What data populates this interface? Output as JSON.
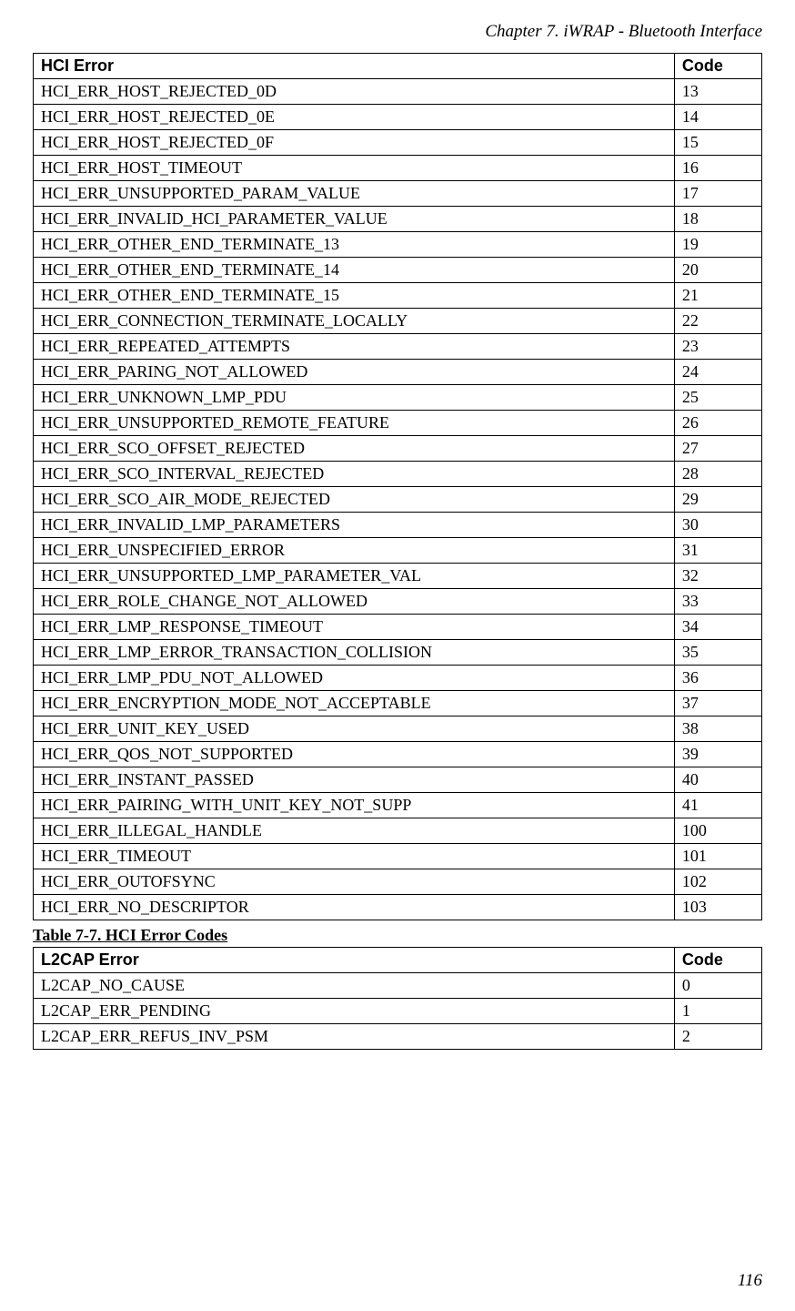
{
  "header": {
    "chapter_title": "Chapter 7. iWRAP - Bluetooth Interface"
  },
  "hci_table": {
    "columns": [
      "HCI Error",
      "Code"
    ],
    "rows": [
      [
        "HCI_ERR_HOST_REJECTED_0D",
        "13"
      ],
      [
        "HCI_ERR_HOST_REJECTED_0E",
        "14"
      ],
      [
        "HCI_ERR_HOST_REJECTED_0F",
        "15"
      ],
      [
        "HCI_ERR_HOST_TIMEOUT",
        "16"
      ],
      [
        "HCI_ERR_UNSUPPORTED_PARAM_VALUE",
        "17"
      ],
      [
        "HCI_ERR_INVALID_HCI_PARAMETER_VALUE",
        "18"
      ],
      [
        "HCI_ERR_OTHER_END_TERMINATE_13",
        "19"
      ],
      [
        "HCI_ERR_OTHER_END_TERMINATE_14",
        "20"
      ],
      [
        "HCI_ERR_OTHER_END_TERMINATE_15",
        "21"
      ],
      [
        "HCI_ERR_CONNECTION_TERMINATE_LOCALLY",
        "22"
      ],
      [
        "HCI_ERR_REPEATED_ATTEMPTS",
        "23"
      ],
      [
        "HCI_ERR_PARING_NOT_ALLOWED",
        "24"
      ],
      [
        "HCI_ERR_UNKNOWN_LMP_PDU",
        "25"
      ],
      [
        "HCI_ERR_UNSUPPORTED_REMOTE_FEATURE",
        "26"
      ],
      [
        "HCI_ERR_SCO_OFFSET_REJECTED",
        "27"
      ],
      [
        "HCI_ERR_SCO_INTERVAL_REJECTED",
        "28"
      ],
      [
        "HCI_ERR_SCO_AIR_MODE_REJECTED",
        "29"
      ],
      [
        "HCI_ERR_INVALID_LMP_PARAMETERS",
        "30"
      ],
      [
        "HCI_ERR_UNSPECIFIED_ERROR",
        "31"
      ],
      [
        "HCI_ERR_UNSUPPORTED_LMP_PARAMETER_VAL",
        "32"
      ],
      [
        "HCI_ERR_ROLE_CHANGE_NOT_ALLOWED",
        "33"
      ],
      [
        "HCI_ERR_LMP_RESPONSE_TIMEOUT",
        "34"
      ],
      [
        "HCI_ERR_LMP_ERROR_TRANSACTION_COLLISION",
        "35"
      ],
      [
        "HCI_ERR_LMP_PDU_NOT_ALLOWED",
        "36"
      ],
      [
        "HCI_ERR_ENCRYPTION_MODE_NOT_ACCEPTABLE",
        "37"
      ],
      [
        "HCI_ERR_UNIT_KEY_USED",
        "38"
      ],
      [
        "HCI_ERR_QOS_NOT_SUPPORTED",
        "39"
      ],
      [
        "HCI_ERR_INSTANT_PASSED",
        "40"
      ],
      [
        "HCI_ERR_PAIRING_WITH_UNIT_KEY_NOT_SUPP",
        "41"
      ],
      [
        "HCI_ERR_ILLEGAL_HANDLE",
        "100"
      ],
      [
        "HCI_ERR_TIMEOUT",
        "101"
      ],
      [
        "HCI_ERR_OUTOFSYNC",
        "102"
      ],
      [
        "HCI_ERR_NO_DESCRIPTOR",
        "103"
      ]
    ]
  },
  "caption": {
    "text": "Table 7-7. HCI Error Codes"
  },
  "l2cap_table": {
    "columns": [
      "L2CAP Error",
      "Code"
    ],
    "rows": [
      [
        "L2CAP_NO_CAUSE",
        "0"
      ],
      [
        "L2CAP_ERR_PENDING",
        "1"
      ],
      [
        "L2CAP_ERR_REFUS_INV_PSM",
        "2"
      ]
    ]
  },
  "footer": {
    "page_number": "116"
  },
  "styling": {
    "font_family_body": "Palatino Linotype",
    "font_family_header_cell": "Arial",
    "body_font_size": 18,
    "header_italic_font_size": 19,
    "border_color": "#000000",
    "background_color": "#ffffff",
    "col_error_width_pct": 88,
    "col_code_width_pct": 12
  }
}
